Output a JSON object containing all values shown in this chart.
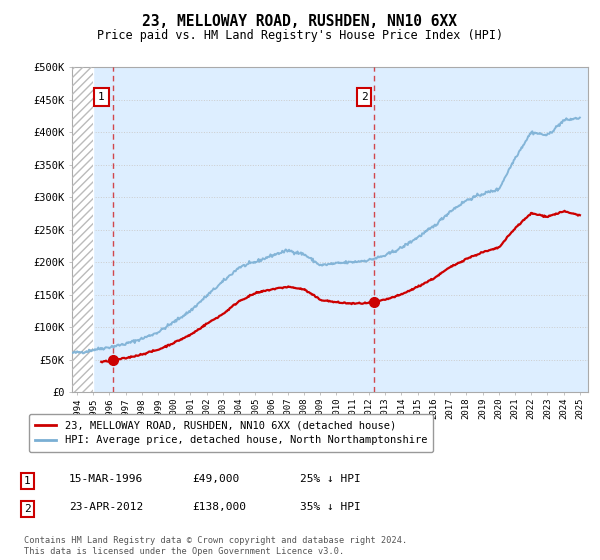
{
  "title": "23, MELLOWAY ROAD, RUSHDEN, NN10 6XX",
  "subtitle": "Price paid vs. HM Land Registry's House Price Index (HPI)",
  "legend_line1": "23, MELLOWAY ROAD, RUSHDEN, NN10 6XX (detached house)",
  "legend_line2": "HPI: Average price, detached house, North Northamptonshire",
  "footer": "Contains HM Land Registry data © Crown copyright and database right 2024.\nThis data is licensed under the Open Government Licence v3.0.",
  "point1_label": "1",
  "point1_date": "15-MAR-1996",
  "point1_price": "£49,000",
  "point1_hpi": "25% ↓ HPI",
  "point1_year": 1996.21,
  "point1_value": 49000,
  "point2_label": "2",
  "point2_date": "23-APR-2012",
  "point2_price": "£138,000",
  "point2_hpi": "35% ↓ HPI",
  "point2_year": 2012.31,
  "point2_value": 138000,
  "red_color": "#cc0000",
  "blue_color": "#7aafd4",
  "background_color": "#ddeeff",
  "ylim": [
    0,
    500000
  ],
  "xlim_start": 1993.7,
  "xlim_end": 2025.5,
  "hatch_end": 1995.0,
  "hpi_keypoints_x": [
    1993.7,
    1994.5,
    1995,
    1996,
    1997,
    1998,
    1999,
    2000,
    2001,
    2002,
    2003,
    2004,
    2005,
    2006,
    2007,
    2008,
    2009,
    2010,
    2011,
    2012,
    2013,
    2014,
    2015,
    2016,
    2017,
    2018,
    2019,
    2020,
    2021,
    2022,
    2023,
    2024,
    2025.0
  ],
  "hpi_keypoints_y": [
    60000,
    62000,
    65000,
    69000,
    74000,
    82000,
    92000,
    108000,
    125000,
    148000,
    170000,
    192000,
    200000,
    210000,
    218000,
    212000,
    195000,
    198000,
    200000,
    203000,
    210000,
    222000,
    238000,
    255000,
    278000,
    295000,
    305000,
    312000,
    360000,
    400000,
    395000,
    418000,
    422000
  ],
  "red_keypoints_x": [
    1995.5,
    1996.0,
    1996.21,
    1997,
    1998,
    1999,
    2000,
    2001,
    2002,
    2003,
    2004,
    2005,
    2006,
    2007,
    2008,
    2009,
    2010,
    2011,
    2012.0,
    2012.31,
    2013,
    2014,
    2015,
    2016,
    2017,
    2018,
    2019,
    2020,
    2021,
    2022,
    2023,
    2024,
    2025.0
  ],
  "red_keypoints_y": [
    46000,
    48000,
    49000,
    52000,
    58000,
    65000,
    76000,
    88000,
    105000,
    120000,
    140000,
    152000,
    158000,
    162000,
    158000,
    142000,
    138000,
    136000,
    137000,
    138000,
    142000,
    150000,
    162000,
    175000,
    192000,
    205000,
    215000,
    222000,
    252000,
    275000,
    270000,
    278000,
    272000
  ]
}
